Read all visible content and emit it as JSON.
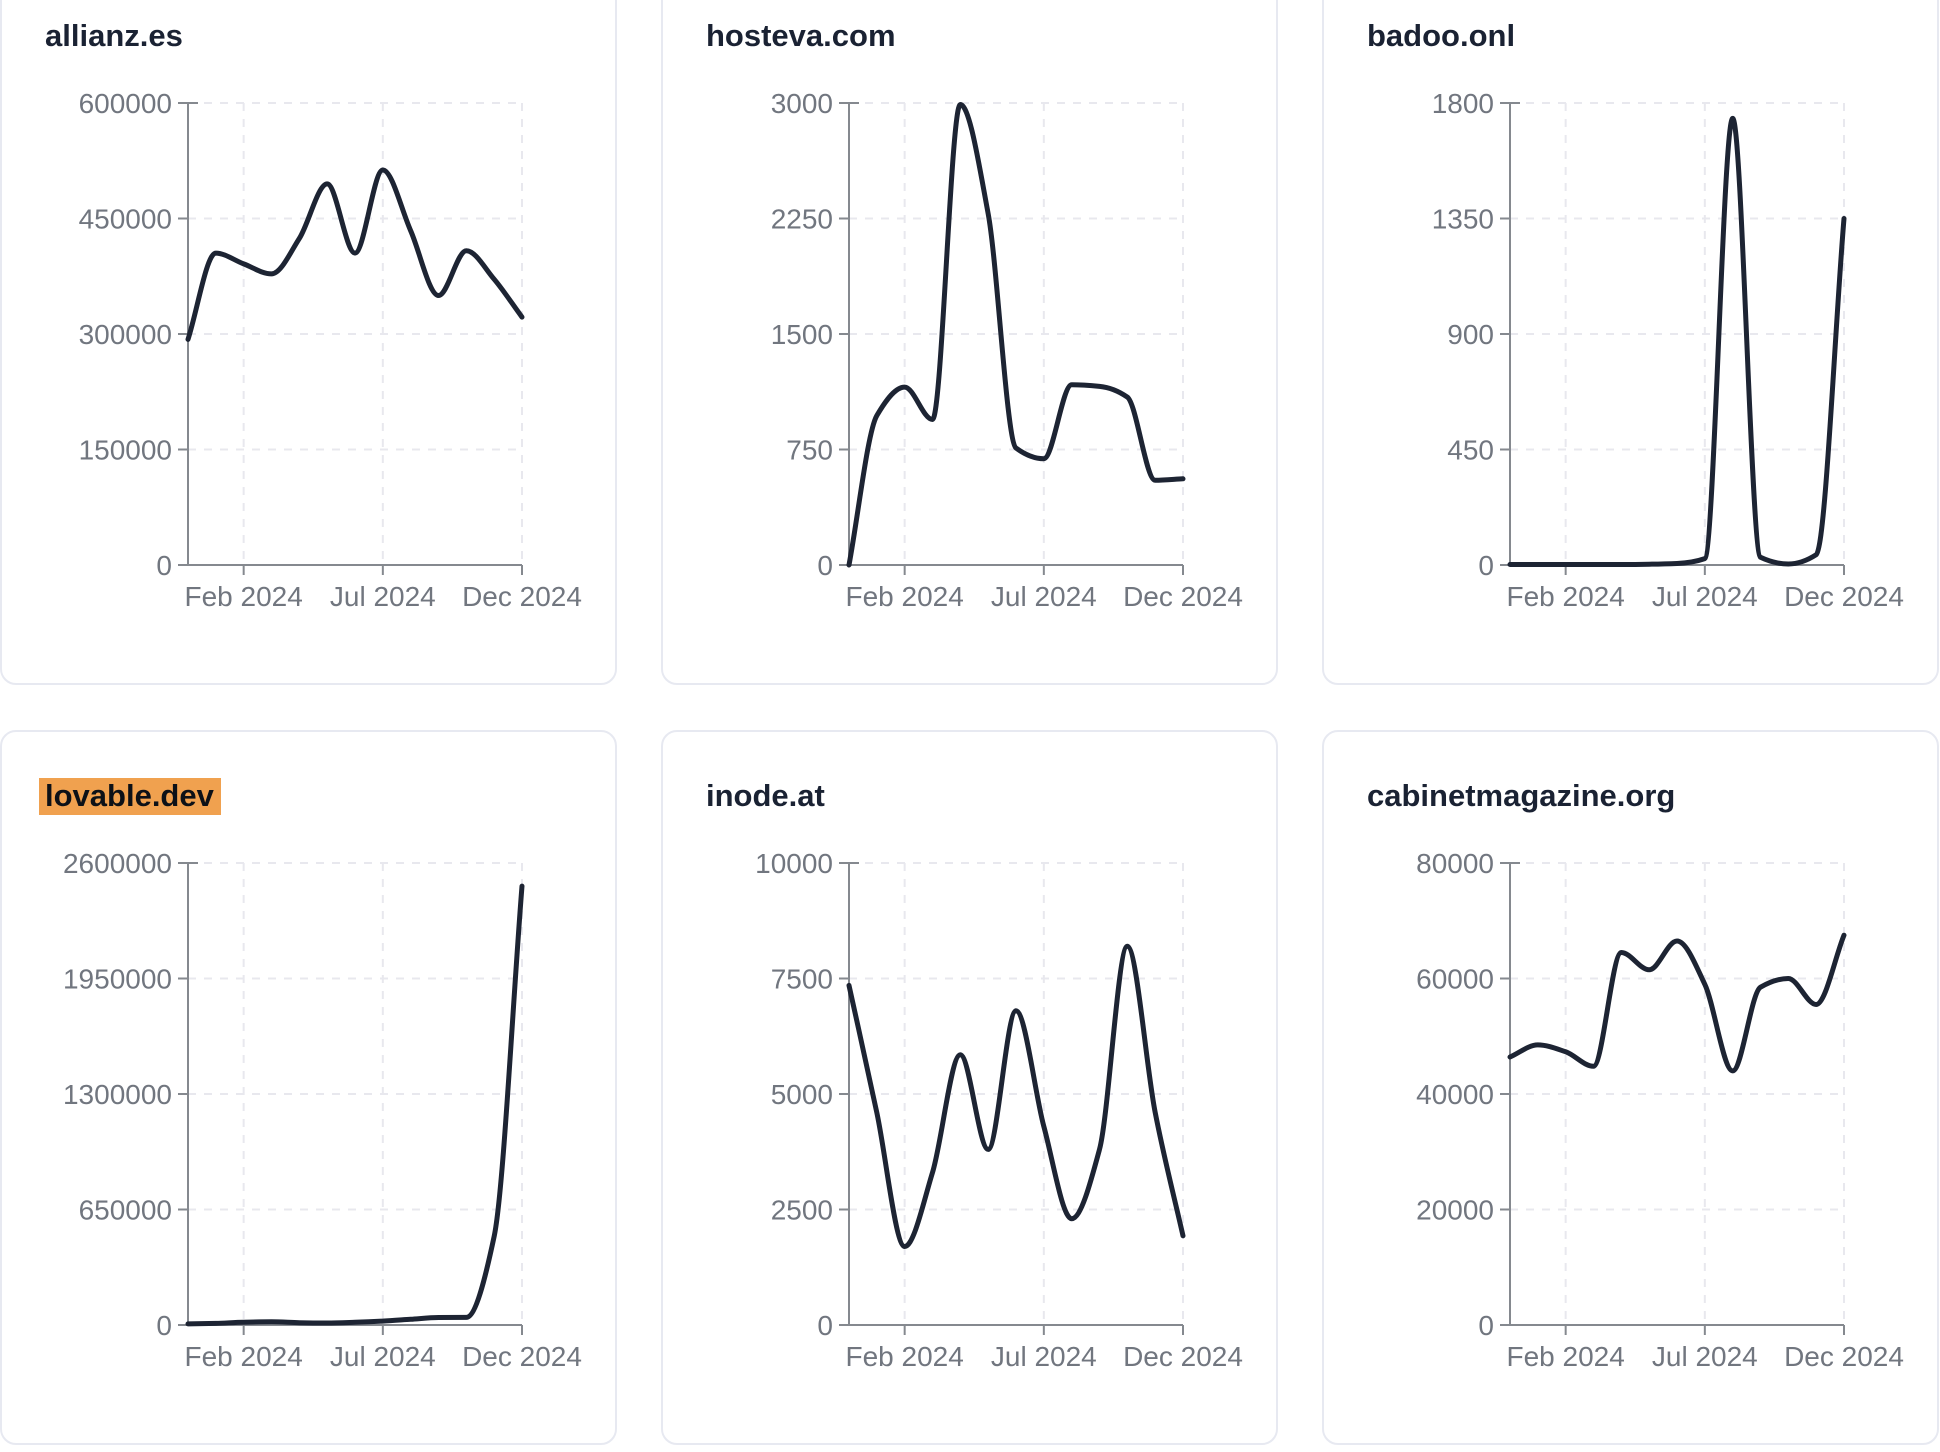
{
  "page": {
    "description": "Grid of website traffic trend mini line charts",
    "background": "#ffffff"
  },
  "style": {
    "line_color": "#1d2433",
    "axis_color": "#85898f",
    "grid_color": "#e8e8ee",
    "tick_label_color": "#71767f",
    "title_color": "#1a2233",
    "highlight_color": "#f0a14f",
    "card_border_color": "#e7e9f1"
  },
  "chart_data": [
    {
      "type": "line",
      "title": "allianz.es",
      "highlighted": false,
      "n_points": 13,
      "x_tick_labels": [
        "Feb 2024",
        "Jul 2024",
        "Dec 2024"
      ],
      "x_tick_indices": [
        2,
        7,
        12
      ],
      "ylim": [
        0,
        600000
      ],
      "y_tick_labels": [
        "0",
        "150000",
        "300000",
        "450000",
        "600000"
      ],
      "values": [
        293000,
        405000,
        391000,
        378000,
        424000,
        495000,
        405000,
        513000,
        434000,
        350000,
        408000,
        371000,
        322000
      ],
      "grid": true,
      "legend": false
    },
    {
      "type": "line",
      "title": "hosteva.com",
      "highlighted": false,
      "n_points": 13,
      "x_tick_labels": [
        "Feb 2024",
        "Jul 2024",
        "Dec 2024"
      ],
      "x_tick_indices": [
        2,
        7,
        12
      ],
      "ylim": [
        0,
        3000
      ],
      "y_tick_labels": [
        "0",
        "750",
        "1500",
        "2250",
        "3000"
      ],
      "values": [
        0,
        970,
        1155,
        945,
        2990,
        2280,
        760,
        690,
        1170,
        1160,
        1090,
        550,
        560
      ],
      "grid": true,
      "legend": false
    },
    {
      "type": "line",
      "title": "badoo.onl",
      "highlighted": false,
      "n_points": 13,
      "x_tick_labels": [
        "Feb 2024",
        "Jul 2024",
        "Dec 2024"
      ],
      "x_tick_indices": [
        2,
        7,
        12
      ],
      "ylim": [
        0,
        1800
      ],
      "y_tick_labels": [
        "0",
        "450",
        "900",
        "1350",
        "1800"
      ],
      "values": [
        2,
        2,
        2,
        2,
        2,
        3,
        6,
        25,
        1740,
        30,
        4,
        40,
        1350
      ],
      "grid": true,
      "legend": false
    },
    {
      "type": "line",
      "title": "lovable.dev",
      "highlighted": true,
      "n_points": 13,
      "x_tick_labels": [
        "Feb 2024",
        "Jul 2024",
        "Dec 2024"
      ],
      "x_tick_indices": [
        2,
        7,
        12
      ],
      "ylim": [
        0,
        2600000
      ],
      "y_tick_labels": [
        "0",
        "650000",
        "1300000",
        "1950000",
        "2600000"
      ],
      "values": [
        6000,
        9000,
        16000,
        18000,
        13000,
        11000,
        15000,
        22000,
        32000,
        42000,
        43000,
        500000,
        2470000
      ],
      "grid": true,
      "legend": false
    },
    {
      "type": "line",
      "title": "inode.at",
      "highlighted": false,
      "n_points": 13,
      "x_tick_labels": [
        "Feb 2024",
        "Jul 2024",
        "Dec 2024"
      ],
      "x_tick_indices": [
        2,
        7,
        12
      ],
      "ylim": [
        0,
        10000
      ],
      "y_tick_labels": [
        "0",
        "2500",
        "5000",
        "7500",
        "10000"
      ],
      "values": [
        7350,
        4600,
        1700,
        3300,
        5850,
        3800,
        6800,
        4300,
        2300,
        3800,
        8200,
        4600,
        1930
      ],
      "grid": true,
      "legend": false
    },
    {
      "type": "line",
      "title": "cabinetmagazine.org",
      "highlighted": false,
      "n_points": 13,
      "x_tick_labels": [
        "Feb 2024",
        "Jul 2024",
        "Dec 2024"
      ],
      "x_tick_indices": [
        2,
        7,
        12
      ],
      "ylim": [
        0,
        80000
      ],
      "y_tick_labels": [
        "0",
        "20000",
        "40000",
        "60000",
        "80000"
      ],
      "values": [
        46400,
        48500,
        47300,
        44800,
        64500,
        61500,
        66500,
        59000,
        44000,
        58500,
        60000,
        55500,
        67500
      ],
      "grid": true,
      "legend": false
    }
  ]
}
